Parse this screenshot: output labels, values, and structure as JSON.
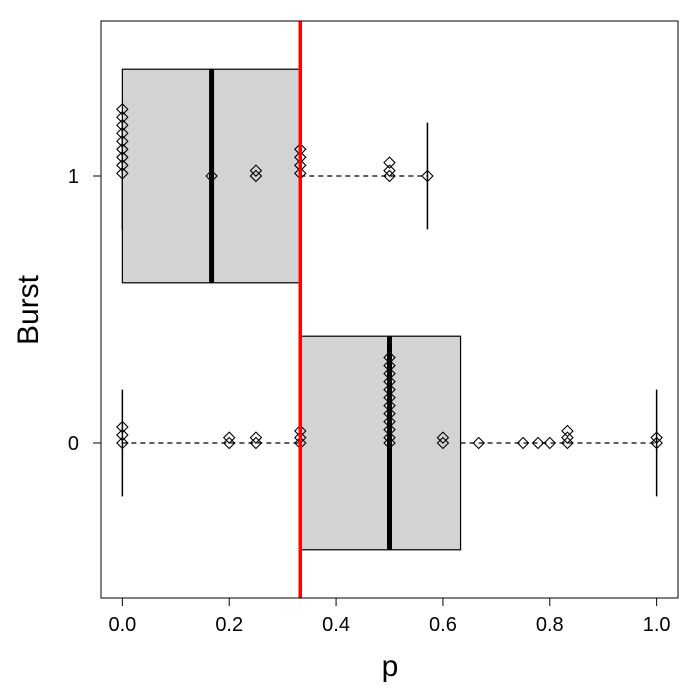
{
  "chart_data": {
    "type": "boxplot",
    "orientation": "horizontal",
    "xlabel": "p",
    "ylabel": "Burst",
    "xlim": [
      -0.04,
      1.04
    ],
    "x_ticks": [
      0.0,
      0.2,
      0.4,
      0.6,
      0.8,
      1.0
    ],
    "x_tick_labels": [
      "0.0",
      "0.2",
      "0.4",
      "0.6",
      "0.8",
      "1.0"
    ],
    "categories": [
      "0",
      "1"
    ],
    "box_fill": "#d3d3d3",
    "reference_line": {
      "x": 0.333,
      "color": "#ff0000"
    },
    "boxes": [
      {
        "category": "0",
        "whisker_low": 0.0,
        "q1": 0.333,
        "median": 0.5,
        "q3": 0.633,
        "whisker_high": 1.0,
        "points": [
          [
            0.0,
            0.06
          ],
          [
            0.0,
            0.03
          ],
          [
            0.0,
            0.0
          ],
          [
            0.2,
            0.02
          ],
          [
            0.2,
            0.0
          ],
          [
            0.25,
            0.02
          ],
          [
            0.25,
            0.0
          ],
          [
            0.333,
            0.045
          ],
          [
            0.333,
            0.02
          ],
          [
            0.333,
            0.0
          ],
          [
            0.5,
            0.32
          ],
          [
            0.5,
            0.29
          ],
          [
            0.5,
            0.26
          ],
          [
            0.5,
            0.23
          ],
          [
            0.5,
            0.2
          ],
          [
            0.5,
            0.17
          ],
          [
            0.5,
            0.14
          ],
          [
            0.5,
            0.11
          ],
          [
            0.5,
            0.08
          ],
          [
            0.5,
            0.05
          ],
          [
            0.5,
            0.02
          ],
          [
            0.5,
            0.0
          ],
          [
            0.6,
            0.02
          ],
          [
            0.6,
            0.0
          ],
          [
            0.667,
            0.0
          ],
          [
            0.75,
            0.0
          ],
          [
            0.778,
            0.0
          ],
          [
            0.8,
            0.0
          ],
          [
            0.833,
            0.045
          ],
          [
            0.833,
            0.02
          ],
          [
            0.833,
            0.0
          ],
          [
            1.0,
            0.02
          ],
          [
            1.0,
            0.0
          ]
        ]
      },
      {
        "category": "1",
        "whisker_low": 0.0,
        "q1": 0.0,
        "median": 0.167,
        "q3": 0.333,
        "whisker_high": 0.571,
        "points": [
          [
            0.0,
            1.25
          ],
          [
            0.0,
            1.22
          ],
          [
            0.0,
            1.19
          ],
          [
            0.0,
            1.16
          ],
          [
            0.0,
            1.13
          ],
          [
            0.0,
            1.1
          ],
          [
            0.0,
            1.07
          ],
          [
            0.0,
            1.04
          ],
          [
            0.0,
            1.01
          ],
          [
            0.167,
            1.0
          ],
          [
            0.25,
            1.02
          ],
          [
            0.25,
            1.0
          ],
          [
            0.333,
            1.1
          ],
          [
            0.333,
            1.07
          ],
          [
            0.333,
            1.04
          ],
          [
            0.333,
            1.01
          ],
          [
            0.5,
            1.05
          ],
          [
            0.5,
            1.02
          ],
          [
            0.5,
            1.0
          ],
          [
            0.571,
            1.0
          ]
        ]
      }
    ]
  }
}
